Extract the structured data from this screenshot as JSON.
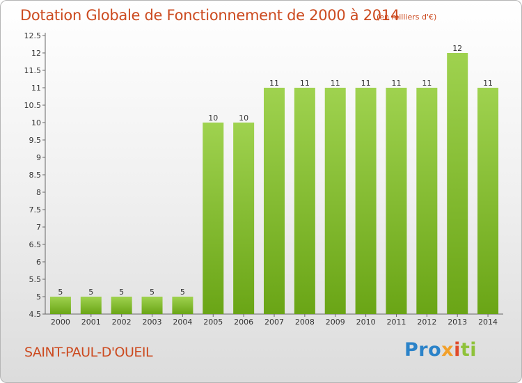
{
  "header": {
    "title": "Dotation Globale de Fonctionnement de 2000 à 2014",
    "subtitle": "(en milliers d'€)"
  },
  "footer": {
    "commune": "SAINT-PAUL-D'OUEIL",
    "logo_text": "Proxiti"
  },
  "colors": {
    "bar_top": "#9fd24f",
    "bar_bottom": "#6aa516",
    "title": "#cc4a1f"
  },
  "chart_data": {
    "type": "bar",
    "title": "Dotation Globale de Fonctionnement de 2000 à 2014",
    "subtitle": "(en milliers d'€)",
    "categories": [
      "2000",
      "2001",
      "2002",
      "2003",
      "2004",
      "2005",
      "2006",
      "2007",
      "2008",
      "2009",
      "2010",
      "2011",
      "2012",
      "2013",
      "2014"
    ],
    "values": [
      5,
      5,
      5,
      5,
      5,
      10,
      10,
      11,
      11,
      11,
      11,
      11,
      11,
      12,
      11
    ],
    "ylim": [
      4.5,
      12.5
    ],
    "yticks": [
      "4.5",
      "5",
      "5.5",
      "6",
      "6.5",
      "7",
      "7.5",
      "8",
      "8.5",
      "9",
      "9.5",
      "10",
      "10.5",
      "11",
      "11.5",
      "12",
      "12.5"
    ],
    "grid": false,
    "legend": "none"
  }
}
